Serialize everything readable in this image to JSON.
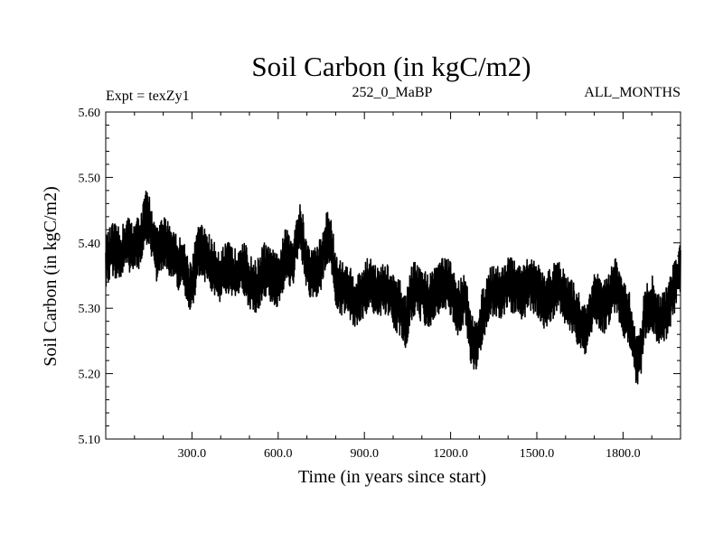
{
  "chart_data": {
    "type": "line",
    "title": "Soil Carbon (in kgC/m2)",
    "subtitle_left": "Expt = texZy1",
    "subtitle_center": "252_0_MaBP",
    "subtitle_right": "ALL_MONTHS",
    "xlabel": "Time (in years since start)",
    "ylabel": "Soil Carbon (in kgC/m2)",
    "xlim": [
      0,
      2000
    ],
    "ylim": [
      5.1,
      5.6
    ],
    "xticks": [
      300,
      600,
      900,
      1200,
      1500,
      1800
    ],
    "xtick_labels": [
      "300.0",
      "600.0",
      "900.0",
      "1200.0",
      "1500.0",
      "1800.0"
    ],
    "yticks": [
      5.1,
      5.2,
      5.3,
      5.4,
      5.5,
      5.6
    ],
    "ytick_labels": [
      "5.10",
      "5.20",
      "5.30",
      "5.40",
      "5.50",
      "5.60"
    ],
    "grid": false,
    "line_color": "#000000",
    "series": [
      {
        "name": "Soil Carbon",
        "x": [
          0,
          25,
          50,
          75,
          100,
          125,
          140,
          155,
          175,
          200,
          225,
          250,
          275,
          290,
          300,
          325,
          350,
          375,
          400,
          425,
          450,
          475,
          500,
          525,
          550,
          575,
          600,
          625,
          650,
          665,
          680,
          700,
          725,
          750,
          770,
          785,
          800,
          825,
          850,
          875,
          900,
          925,
          950,
          975,
          1000,
          1025,
          1045,
          1060,
          1075,
          1100,
          1125,
          1150,
          1175,
          1200,
          1225,
          1250,
          1270,
          1290,
          1300,
          1325,
          1350,
          1375,
          1400,
          1425,
          1450,
          1475,
          1500,
          1525,
          1550,
          1575,
          1600,
          1625,
          1650,
          1670,
          1685,
          1700,
          1725,
          1750,
          1775,
          1800,
          1825,
          1845,
          1860,
          1875,
          1900,
          1925,
          1950,
          1975,
          2000
        ],
        "values": [
          5.37,
          5.39,
          5.38,
          5.4,
          5.39,
          5.41,
          5.44,
          5.43,
          5.38,
          5.4,
          5.39,
          5.37,
          5.36,
          5.33,
          5.34,
          5.39,
          5.38,
          5.36,
          5.35,
          5.36,
          5.35,
          5.37,
          5.34,
          5.33,
          5.36,
          5.35,
          5.34,
          5.38,
          5.37,
          5.41,
          5.42,
          5.36,
          5.35,
          5.37,
          5.41,
          5.4,
          5.34,
          5.33,
          5.32,
          5.31,
          5.33,
          5.34,
          5.32,
          5.33,
          5.31,
          5.3,
          5.28,
          5.32,
          5.33,
          5.32,
          5.31,
          5.33,
          5.34,
          5.33,
          5.3,
          5.32,
          5.25,
          5.24,
          5.27,
          5.31,
          5.33,
          5.32,
          5.34,
          5.33,
          5.32,
          5.34,
          5.33,
          5.31,
          5.32,
          5.34,
          5.31,
          5.3,
          5.28,
          5.26,
          5.29,
          5.32,
          5.3,
          5.31,
          5.34,
          5.3,
          5.28,
          5.22,
          5.23,
          5.29,
          5.31,
          5.28,
          5.29,
          5.33,
          5.36
        ]
      }
    ]
  }
}
